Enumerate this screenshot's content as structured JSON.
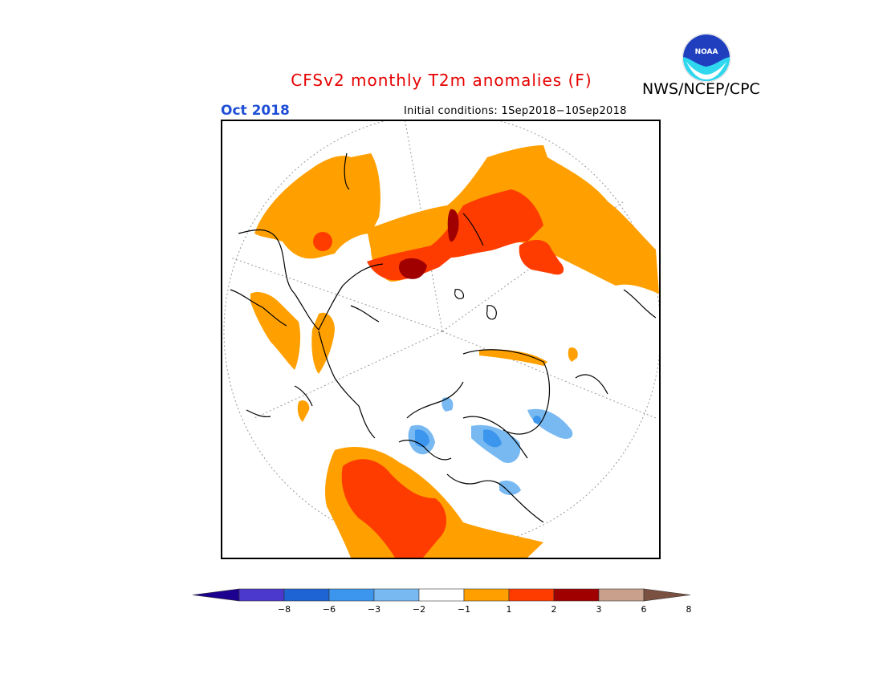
{
  "header": {
    "title": "CFSv2 monthly T2m anomalies (F)",
    "agency": "NWS/NCEP/CPC",
    "valid_month": "Oct 2018",
    "initial_conditions": "Initial conditions: 1Sep2018−10Sep2018"
  },
  "colors": {
    "title": "#e60000",
    "valid_month": "#1f4fd6"
  },
  "logo": {
    "text": "NOAA",
    "icon": "noaa-logo-icon"
  },
  "legend": {
    "bins": [
      {
        "color": "#1c0090"
      },
      {
        "color": "#4b38cc"
      },
      {
        "color": "#1e64d4"
      },
      {
        "color": "#3c96ee"
      },
      {
        "color": "#78b9f2"
      },
      {
        "color": "#ffffff"
      },
      {
        "color": "#ffa000"
      },
      {
        "color": "#ff3c00"
      },
      {
        "color": "#a00000"
      },
      {
        "color": "#c8a08c"
      },
      {
        "color": "#7a5040"
      }
    ],
    "tick_labels": [
      "−8",
      "−6",
      "−3",
      "−2",
      "−1",
      "1",
      "2",
      "3",
      "6",
      "8"
    ]
  }
}
